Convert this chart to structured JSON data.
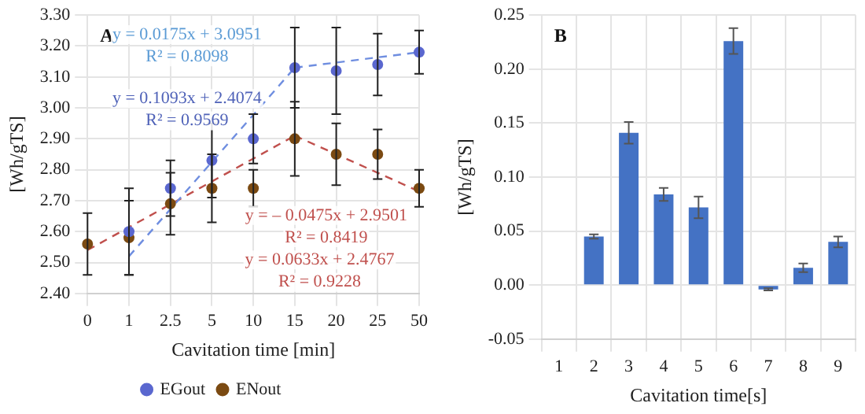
{
  "chart_data": [
    {
      "type": "line",
      "title": "A",
      "xlabel": "Cavitation time [min]",
      "ylabel": "[Wh/gTS]",
      "categories": [
        "0",
        "1",
        "2.5",
        "5",
        "10",
        "15",
        "20",
        "25",
        "50"
      ],
      "series": [
        {
          "name": "EGout",
          "type": "scatter",
          "marker": "circle",
          "color": "#5a67cf",
          "values": [
            null,
            2.6,
            2.74,
            2.83,
            2.9,
            3.13,
            3.12,
            3.14,
            3.18
          ],
          "errors": [
            null,
            0.14,
            0.09,
            0.12,
            0.08,
            0.13,
            0.14,
            0.1,
            0.07
          ]
        },
        {
          "name": "ENout",
          "type": "scatter",
          "marker": "circle",
          "color": "#7b4a12",
          "values": [
            2.56,
            2.58,
            2.69,
            2.74,
            2.74,
            2.9,
            2.85,
            2.85,
            2.74
          ],
          "errors": [
            0.1,
            0.12,
            0.1,
            0.11,
            0.06,
            0.12,
            0.1,
            0.08,
            0.06
          ]
        },
        {
          "type": "line",
          "marker": "none",
          "line_style": "dashed",
          "color": "#6f8ee0",
          "values": [
            null,
            2.52,
            null,
            null,
            null,
            3.13,
            null,
            null,
            null
          ]
        },
        {
          "type": "line",
          "marker": "none",
          "line_style": "dashed",
          "color": "#6f8ee0",
          "values": [
            null,
            null,
            null,
            null,
            null,
            3.13,
            null,
            null,
            3.18
          ]
        },
        {
          "type": "line",
          "marker": "none",
          "line_style": "dashed",
          "color": "#c0504d",
          "values": [
            2.54,
            null,
            null,
            null,
            null,
            2.91,
            null,
            null,
            null
          ]
        },
        {
          "type": "line",
          "marker": "none",
          "line_style": "dashed",
          "color": "#c0504d",
          "values": [
            null,
            null,
            null,
            null,
            null,
            2.91,
            null,
            null,
            2.73
          ]
        }
      ],
      "ylim": [
        2.4,
        3.3
      ],
      "yticks": [
        {
          "value": 2.4,
          "label": "2.40"
        },
        {
          "value": 2.5,
          "label": "2.50"
        },
        {
          "value": 2.6,
          "label": "2.60"
        },
        {
          "value": 2.7,
          "label": "2.70"
        },
        {
          "value": 2.8,
          "label": "2.80"
        },
        {
          "value": 2.9,
          "label": "2.90"
        },
        {
          "value": 3.0,
          "label": "3.00"
        },
        {
          "value": 3.1,
          "label": "3.10"
        },
        {
          "value": 3.2,
          "label": "3.20"
        },
        {
          "value": 3.3,
          "label": "3.30"
        }
      ],
      "grid": true,
      "legend": "bottom",
      "annotations": [
        "y = 0.0175x + 3.0951",
        "R² = 0.8098",
        "y = 0.1093x + 2.4074",
        "R² = 0.9569",
        "y = – 0.0475x + 2.9501",
        "R² = 0.8419",
        "y = 0.0633x + 2.4767",
        "R² = 0.9228"
      ]
    },
    {
      "type": "bar",
      "title": "B",
      "xlabel": "Cavitation time[s]",
      "ylabel": "[Wh/gTS]",
      "categories": [
        "1",
        "2",
        "3",
        "4",
        "5",
        "6",
        "7",
        "8",
        "9"
      ],
      "values": [
        null,
        0.045,
        0.141,
        0.084,
        0.072,
        0.226,
        -0.004,
        0.016,
        0.04
      ],
      "errors": [
        null,
        0.002,
        0.01,
        0.006,
        0.01,
        0.012,
        0.001,
        0.004,
        0.005
      ],
      "color": "#4472c4",
      "ylim": [
        -0.05,
        0.25
      ],
      "yticks": [
        {
          "value": -0.05,
          "label": "-0.05"
        },
        {
          "value": 0,
          "label": "0.00"
        },
        {
          "value": 0.05,
          "label": "0.05"
        },
        {
          "value": 0.1,
          "label": "0.10"
        },
        {
          "value": 0.15,
          "label": "0.15"
        },
        {
          "value": 0.2,
          "label": "0.20"
        },
        {
          "value": 0.25,
          "label": "0.25"
        }
      ],
      "grid": true
    }
  ]
}
